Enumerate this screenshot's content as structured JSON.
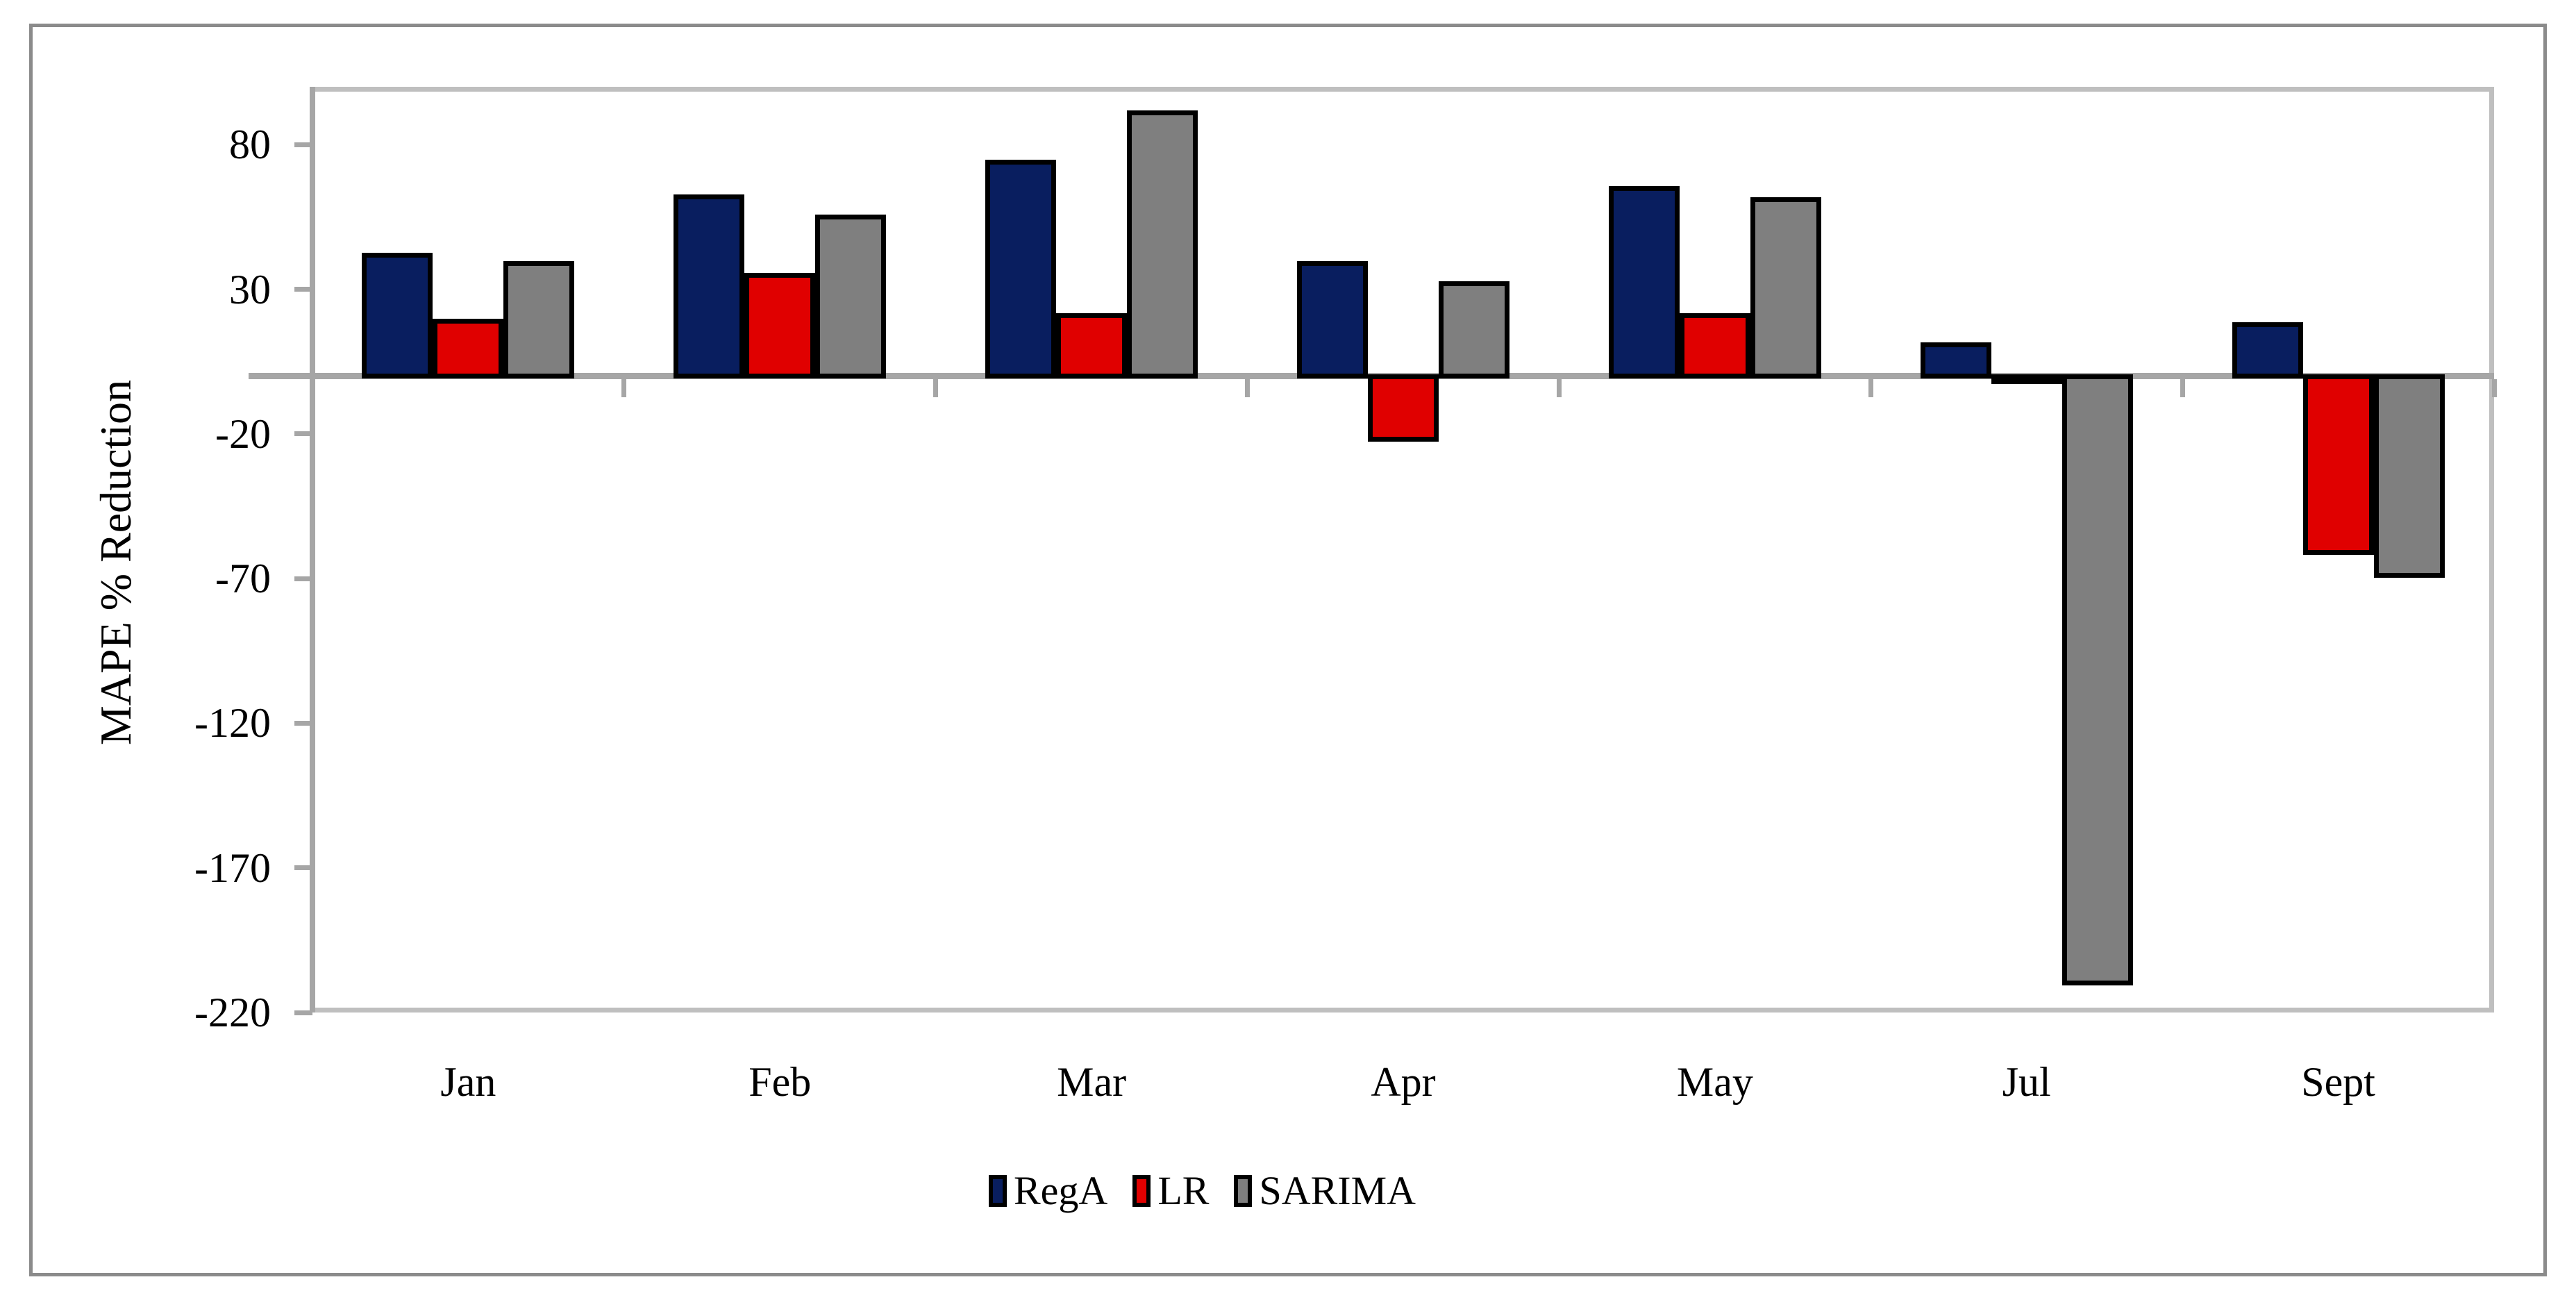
{
  "figure": {
    "ylabel": "MAPE % Reduction"
  },
  "chart_data": {
    "type": "bar",
    "title": "",
    "xlabel": "",
    "ylabel": "MAPE % Reduction",
    "categories": [
      "Jan",
      "Feb",
      "Mar",
      "Apr",
      "May",
      "Jul",
      "Sept"
    ],
    "series": [
      {
        "name": "RegA",
        "color": "#091e5f",
        "values": [
          42,
          62,
          74,
          39,
          65,
          11,
          18
        ]
      },
      {
        "name": "LR",
        "color": "#e00000",
        "values": [
          19,
          35,
          21,
          -22,
          21,
          -2,
          -61
        ]
      },
      {
        "name": "SARIMA",
        "color": "#7f7f7f",
        "values": [
          39,
          55,
          91,
          32,
          61,
          -210,
          -69
        ]
      }
    ],
    "yticks": [
      80,
      30,
      -20,
      -70,
      -120,
      -170,
      -220
    ],
    "ylim": [
      -220,
      100
    ],
    "grid": "off",
    "legend_position": "bottom",
    "bar_border_color": "#000000",
    "axis_line_color": "#a6a6a6",
    "plot_border_color": "#bfbfbf"
  }
}
